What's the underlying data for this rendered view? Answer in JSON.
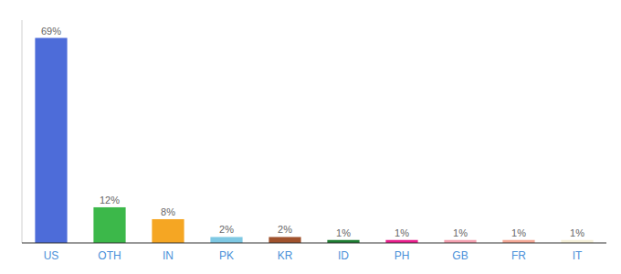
{
  "chart_data": {
    "type": "bar",
    "categories": [
      "US",
      "OTH",
      "IN",
      "PK",
      "KR",
      "ID",
      "PH",
      "GB",
      "FR",
      "IT"
    ],
    "values": [
      69,
      12,
      8,
      2,
      2,
      1,
      1,
      1,
      1,
      1
    ],
    "value_labels": [
      "69%",
      "12%",
      "8%",
      "2%",
      "2%",
      "1%",
      "1%",
      "1%",
      "1%",
      "1%"
    ],
    "colors": [
      "#4d6cd9",
      "#3cb84a",
      "#f5a623",
      "#7ec8e3",
      "#a0522d",
      "#1e7d32",
      "#e91e8c",
      "#f4a0b0",
      "#f4a896",
      "#f5f0d8"
    ],
    "ylim": [
      0,
      75
    ],
    "grid": false,
    "data_labels": true,
    "tick_labels": "x"
  }
}
